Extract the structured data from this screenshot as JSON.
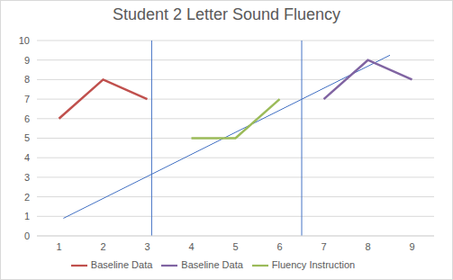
{
  "chart_data": {
    "type": "line",
    "title": "Student 2 Letter Sound Fluency",
    "x": [
      1,
      2,
      3,
      4,
      5,
      6,
      7,
      8,
      9
    ],
    "series": [
      {
        "name": "Baseline Data",
        "color": "#c0504d",
        "values": [
          6,
          8,
          7,
          null,
          null,
          null,
          null,
          null,
          null
        ]
      },
      {
        "name": "Fluency Instruction",
        "color": "#9bbb59",
        "values": [
          null,
          null,
          null,
          5,
          5,
          7,
          null,
          null,
          null
        ]
      },
      {
        "name": "Baseline Data",
        "color": "#8064a2",
        "values": [
          null,
          null,
          null,
          null,
          null,
          null,
          7,
          9,
          8
        ]
      }
    ],
    "xlim": [
      0.5,
      9.5
    ],
    "xticks": [
      1,
      2,
      3,
      4,
      5,
      6,
      7,
      8,
      9
    ],
    "ylim": [
      0,
      10
    ],
    "yticks": [
      0,
      1,
      2,
      3,
      4,
      5,
      6,
      7,
      8,
      9,
      10
    ],
    "grid": true,
    "legend": "bottom",
    "trendline": {
      "x": [
        1.1,
        8.5
      ],
      "y": [
        0.9,
        9.25
      ]
    },
    "phase_lines": [
      3.1,
      6.5
    ]
  }
}
